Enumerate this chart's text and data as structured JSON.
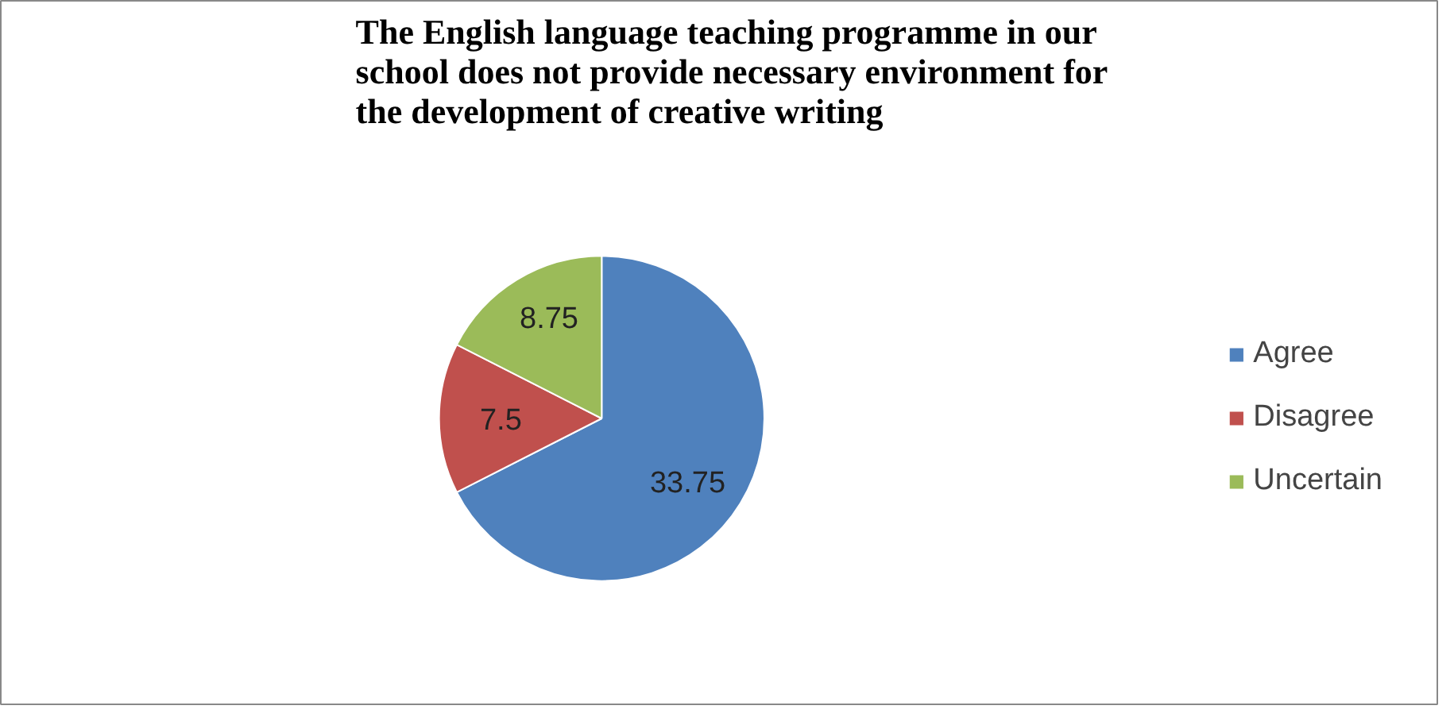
{
  "chart_data": {
    "type": "pie",
    "title": "The English language teaching programme in our school does not provide necessary environment for the development of creative writing",
    "categories": [
      "Agree",
      "Disagree",
      "Uncertain"
    ],
    "values": [
      33.75,
      7.5,
      8.75
    ],
    "colors": [
      "#4f81bd",
      "#c0504d",
      "#9bbb59"
    ],
    "data_labels": true,
    "legend": "right"
  }
}
